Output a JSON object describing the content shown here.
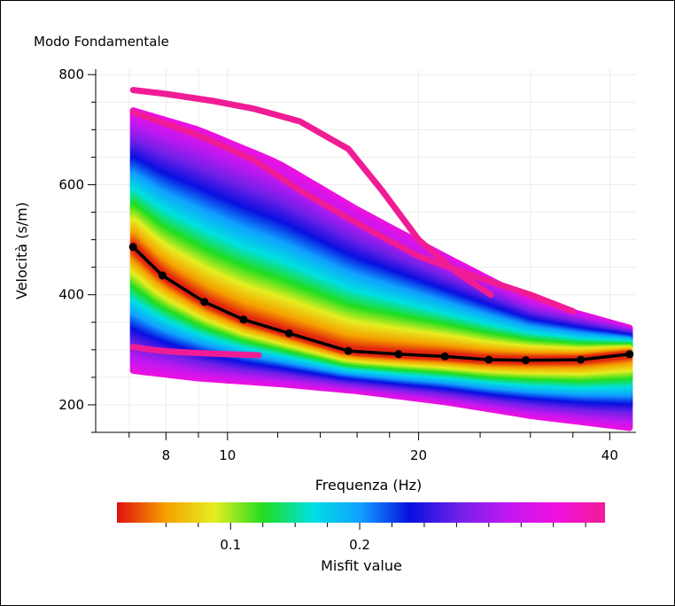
{
  "chart_data": {
    "type": "line",
    "title": "Modo Fondamentale",
    "xlabel": "Frequenza (Hz)",
    "ylabel": "Velocità (s/m)",
    "x_scale": "log",
    "xlim": [
      6.2,
      44
    ],
    "ylim": [
      150,
      810
    ],
    "x_ticks": [
      8,
      10,
      20,
      40
    ],
    "y_ticks": [
      200,
      400,
      600,
      800
    ],
    "grid": true,
    "best_fit": {
      "name": "",
      "color": "#000000",
      "x": [
        7.1,
        7.9,
        9.2,
        10.6,
        12.5,
        15.5,
        18.6,
        22.0,
        25.8,
        29.5,
        36.0,
        43.0
      ],
      "y": [
        487,
        435,
        387,
        355,
        330,
        298,
        292,
        288,
        282,
        281,
        282,
        292
      ]
    },
    "ensemble_families": [
      {
        "misfit": 0.35,
        "x": [
          7.1,
          9,
          12,
          16,
          22,
          30,
          43
        ],
        "y": [
          735,
          700,
          640,
          555,
          470,
          390,
          340
        ]
      },
      {
        "misfit": 0.35,
        "x": [
          7.1,
          9,
          12,
          16,
          22,
          30,
          43
        ],
        "y": [
          262,
          248,
          238,
          225,
          205,
          180,
          158
        ]
      }
    ],
    "highlighted_curves": [
      {
        "x": [
          7.1,
          8,
          9.5,
          11,
          13,
          15.5,
          17.5,
          20,
          23,
          26
        ],
        "y": [
          772,
          765,
          752,
          738,
          715,
          665,
          590,
          500,
          440,
          400
        ]
      },
      {
        "x": [
          7.1,
          9,
          11,
          13,
          16,
          20,
          25,
          30,
          35
        ],
        "y": [
          732,
          690,
          645,
          590,
          530,
          470,
          430,
          400,
          370
        ]
      },
      {
        "x": [
          7.1,
          7.6,
          8.3,
          9,
          10,
          11.2
        ],
        "y": [
          305,
          300,
          296,
          294,
          292,
          290
        ]
      }
    ],
    "colorbar": {
      "label": "Misfit value",
      "min": 0.012,
      "max": 0.39,
      "ticks": [
        0.1,
        0.2
      ],
      "tick_labels": [
        "0.1",
        "0.2"
      ],
      "colors": [
        "#e01010",
        "#f5a000",
        "#e5ee20",
        "#20dd20",
        "#00e0e0",
        "#10a0ff",
        "#0810e0",
        "#7020e8",
        "#c018f0",
        "#f010e0",
        "#f01c96"
      ]
    }
  }
}
